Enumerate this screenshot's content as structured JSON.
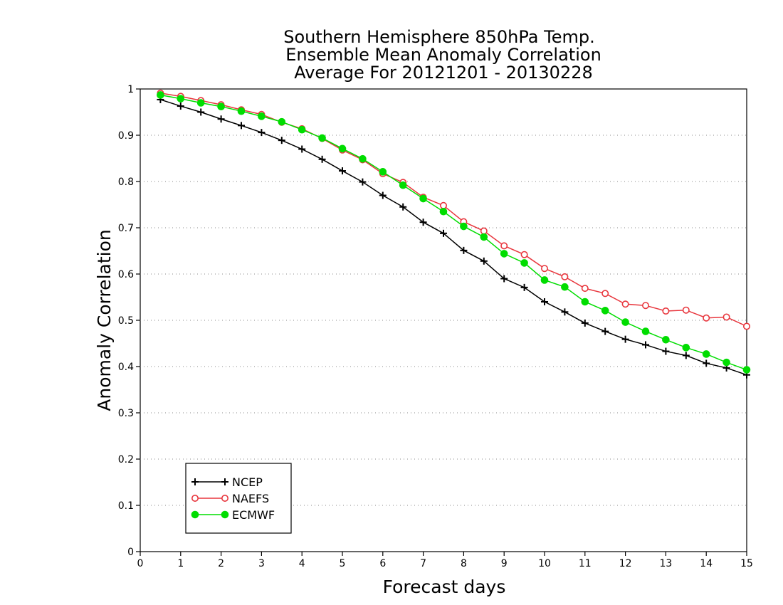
{
  "chart_data": {
    "type": "line",
    "title_lines": [
      "Southern Hemisphere 850hPa Temp.",
      "Ensemble Mean Anomaly Correlation",
      "Average For 20121201 - 20130228"
    ],
    "xlabel": "Forecast days",
    "ylabel": "Anomaly Correlation",
    "xlim": [
      0,
      15
    ],
    "ylim": [
      0,
      1
    ],
    "x_ticks": [
      "0",
      "1",
      "2",
      "3",
      "4",
      "5",
      "6",
      "7",
      "8",
      "9",
      "10",
      "11",
      "12",
      "13",
      "14",
      "15"
    ],
    "y_ticks": [
      "0",
      "0.1",
      "0.2",
      "0.3",
      "0.4",
      "0.5",
      "0.6",
      "0.7",
      "0.8",
      "0.9",
      "1"
    ],
    "grid": "horizontal dotted",
    "legend_position": "bottom-left",
    "x": [
      0.5,
      1,
      1.5,
      2,
      2.5,
      3,
      3.5,
      4,
      4.5,
      5,
      5.5,
      6,
      6.5,
      7,
      7.5,
      8,
      8.5,
      9,
      9.5,
      10,
      10.5,
      11,
      11.5,
      12,
      12.5,
      13,
      13.5,
      14,
      14.5,
      15
    ],
    "series": [
      {
        "name": "NCEP",
        "color": "#000000",
        "marker": "plus",
        "values": [
          0.977,
          0.963,
          0.95,
          0.935,
          0.921,
          0.906,
          0.889,
          0.87,
          0.848,
          0.823,
          0.799,
          0.77,
          0.745,
          0.712,
          0.688,
          0.651,
          0.628,
          0.59,
          0.571,
          0.54,
          0.518,
          0.494,
          0.476,
          0.459,
          0.447,
          0.433,
          0.424,
          0.407,
          0.397,
          0.382
        ]
      },
      {
        "name": "NAEFS",
        "color": "#e8363d",
        "marker": "open-circle",
        "values": [
          0.991,
          0.984,
          0.975,
          0.966,
          0.955,
          0.945,
          0.928,
          0.914,
          0.893,
          0.868,
          0.847,
          0.817,
          0.798,
          0.766,
          0.748,
          0.713,
          0.693,
          0.661,
          0.642,
          0.612,
          0.594,
          0.569,
          0.558,
          0.535,
          0.532,
          0.52,
          0.522,
          0.505,
          0.507,
          0.487
        ]
      },
      {
        "name": "ECMWF",
        "color": "#00dd00",
        "marker": "filled-circle",
        "values": [
          0.987,
          0.979,
          0.97,
          0.962,
          0.952,
          0.941,
          0.929,
          0.912,
          0.894,
          0.871,
          0.849,
          0.821,
          0.792,
          0.763,
          0.735,
          0.703,
          0.68,
          0.644,
          0.624,
          0.587,
          0.572,
          0.54,
          0.521,
          0.496,
          0.476,
          0.458,
          0.441,
          0.427,
          0.409,
          0.393
        ]
      }
    ]
  }
}
